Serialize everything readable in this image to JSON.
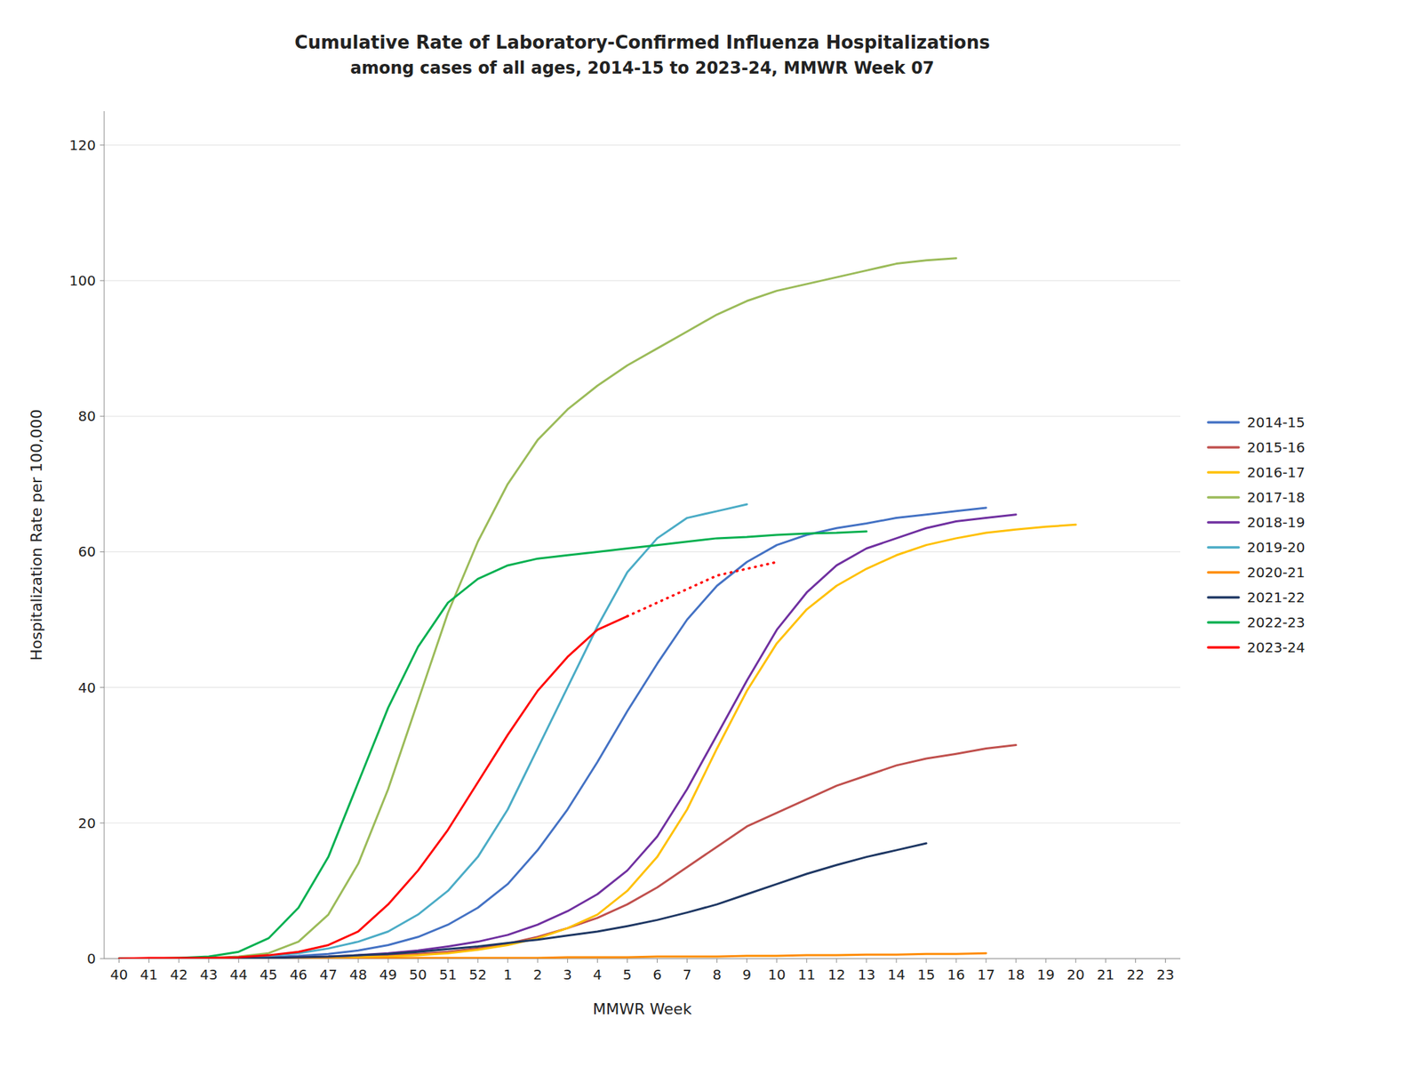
{
  "chart_data": {
    "type": "line",
    "title": "Cumulative Rate of Laboratory-Confirmed Influenza Hospitalizations",
    "subtitle": "among cases of all ages, 2014-15 to 2023-24, MMWR Week 07",
    "x_label": "MMWR Week",
    "y_label": "Hospitalization Rate per 100,000",
    "categories": [
      "40",
      "41",
      "42",
      "43",
      "44",
      "45",
      "46",
      "47",
      "48",
      "49",
      "50",
      "51",
      "52",
      "1",
      "2",
      "3",
      "4",
      "5",
      "6",
      "7",
      "8",
      "9",
      "10",
      "11",
      "12",
      "13",
      "14",
      "15",
      "16",
      "17",
      "18",
      "19",
      "20",
      "21",
      "22",
      "23"
    ],
    "ylim": [
      0,
      125
    ],
    "yticks": [
      0,
      20,
      40,
      60,
      80,
      100,
      120
    ],
    "grid": true,
    "legend": "right",
    "series": [
      {
        "name": "2014-15",
        "color": "#4472C4",
        "line_style": "solid",
        "values": [
          0.0,
          0.0,
          0.0,
          0.0,
          0.1,
          0.2,
          0.4,
          0.7,
          1.2,
          2.0,
          3.2,
          5.0,
          7.5,
          11.0,
          16.0,
          22.0,
          29.0,
          36.5,
          43.5,
          50.0,
          55.0,
          58.5,
          61.0,
          62.5,
          63.5,
          64.2,
          65.0,
          65.5,
          66.0,
          66.5,
          null,
          null,
          null,
          null,
          null,
          null
        ]
      },
      {
        "name": "2015-16",
        "color": "#C0504D",
        "line_style": "solid",
        "values": [
          0.0,
          0.0,
          0.0,
          0.0,
          0.0,
          0.1,
          0.1,
          0.2,
          0.3,
          0.5,
          0.7,
          1.0,
          1.5,
          2.2,
          3.2,
          4.5,
          6.0,
          8.0,
          10.5,
          13.5,
          16.5,
          19.5,
          21.5,
          23.5,
          25.5,
          27.0,
          28.5,
          29.5,
          30.2,
          31.0,
          31.5,
          null,
          null,
          null,
          null,
          null
        ]
      },
      {
        "name": "2016-17",
        "color": "#FFC000",
        "line_style": "solid",
        "values": [
          0.0,
          0.0,
          0.0,
          0.0,
          0.0,
          0.0,
          0.1,
          0.1,
          0.2,
          0.3,
          0.5,
          0.8,
          1.3,
          2.0,
          3.0,
          4.5,
          6.5,
          10.0,
          15.0,
          22.0,
          31.0,
          39.5,
          46.5,
          51.5,
          55.0,
          57.5,
          59.5,
          61.0,
          62.0,
          62.8,
          63.3,
          63.7,
          64.0,
          null,
          null,
          null
        ]
      },
      {
        "name": "2017-18",
        "color": "#9BBB59",
        "line_style": "solid",
        "values": [
          0.0,
          0.0,
          0.0,
          0.1,
          0.3,
          0.8,
          2.5,
          6.5,
          14.0,
          25.0,
          38.0,
          51.0,
          61.5,
          70.0,
          76.5,
          81.0,
          84.5,
          87.5,
          90.0,
          92.5,
          95.0,
          97.0,
          98.5,
          99.5,
          100.5,
          101.5,
          102.5,
          103.0,
          103.3,
          null,
          null,
          null,
          null,
          null,
          null,
          null
        ]
      },
      {
        "name": "2018-19",
        "color": "#7030A0",
        "line_style": "solid",
        "values": [
          0.0,
          0.0,
          0.0,
          0.0,
          0.0,
          0.1,
          0.2,
          0.3,
          0.5,
          0.8,
          1.2,
          1.8,
          2.5,
          3.5,
          5.0,
          7.0,
          9.5,
          13.0,
          18.0,
          25.0,
          33.0,
          41.0,
          48.5,
          54.0,
          58.0,
          60.5,
          62.0,
          63.5,
          64.5,
          65.0,
          65.5,
          null,
          null,
          null,
          null,
          null
        ]
      },
      {
        "name": "2019-20",
        "color": "#4BACC6",
        "line_style": "solid",
        "values": [
          0.0,
          0.0,
          0.0,
          0.1,
          0.2,
          0.4,
          0.8,
          1.5,
          2.5,
          4.0,
          6.5,
          10.0,
          15.0,
          22.0,
          31.0,
          40.0,
          49.0,
          57.0,
          62.0,
          65.0,
          66.0,
          67.0,
          null,
          null,
          null,
          null,
          null,
          null,
          null,
          null,
          null,
          null,
          null,
          null,
          null,
          null
        ]
      },
      {
        "name": "2020-21",
        "color": "#FF8C00",
        "line_style": "solid",
        "values": [
          0.0,
          0.0,
          0.0,
          0.0,
          0.0,
          0.0,
          0.0,
          0.0,
          0.0,
          0.1,
          0.1,
          0.1,
          0.1,
          0.1,
          0.1,
          0.2,
          0.2,
          0.2,
          0.3,
          0.3,
          0.3,
          0.4,
          0.4,
          0.5,
          0.5,
          0.6,
          0.6,
          0.7,
          0.7,
          0.8,
          null,
          null,
          null,
          null,
          null,
          null
        ]
      },
      {
        "name": "2021-22",
        "color": "#1F3864",
        "line_style": "solid",
        "values": [
          0.0,
          0.0,
          0.0,
          0.0,
          0.1,
          0.1,
          0.2,
          0.3,
          0.5,
          0.7,
          1.0,
          1.4,
          1.8,
          2.3,
          2.8,
          3.4,
          4.0,
          4.8,
          5.7,
          6.8,
          8.0,
          9.5,
          11.0,
          12.5,
          13.8,
          15.0,
          16.0,
          17.0,
          null,
          null,
          null,
          null,
          null,
          null,
          null,
          null
        ]
      },
      {
        "name": "2022-23",
        "color": "#00B050",
        "line_style": "solid",
        "values": [
          0.0,
          0.0,
          0.1,
          0.3,
          1.0,
          3.0,
          7.5,
          15.0,
          26.0,
          37.0,
          46.0,
          52.5,
          56.0,
          58.0,
          59.0,
          59.5,
          60.0,
          60.5,
          61.0,
          61.5,
          62.0,
          62.2,
          62.5,
          62.7,
          62.8,
          63.0,
          null,
          null,
          null,
          null,
          null,
          null,
          null,
          null,
          null,
          null
        ]
      },
      {
        "name": "2023-24",
        "color": "#FF0000",
        "line_style": "solid",
        "values": [
          0.0,
          0.1,
          0.1,
          0.1,
          0.2,
          0.5,
          1.0,
          2.0,
          4.0,
          8.0,
          13.0,
          19.0,
          26.0,
          33.0,
          39.5,
          44.5,
          48.5,
          50.5,
          null,
          null,
          null,
          null,
          null,
          null,
          null,
          null,
          null,
          null,
          null,
          null,
          null,
          null,
          null,
          null,
          null,
          null
        ]
      },
      {
        "color": "#FF0000",
        "line_style": "dotted",
        "values": [
          null,
          null,
          null,
          null,
          null,
          null,
          null,
          null,
          null,
          null,
          null,
          null,
          null,
          null,
          null,
          null,
          null,
          50.5,
          52.5,
          54.5,
          56.5,
          57.5,
          58.5,
          null,
          null,
          null,
          null,
          null,
          null,
          null,
          null,
          null,
          null,
          null,
          null,
          null
        ]
      }
    ]
  }
}
